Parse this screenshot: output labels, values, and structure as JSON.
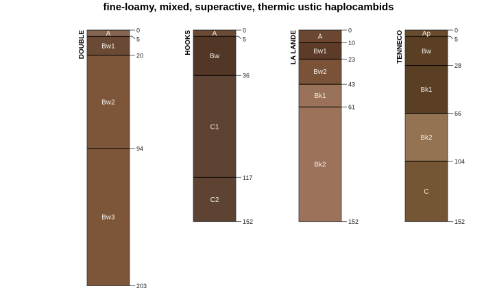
{
  "title": "fine-loamy, mixed, superactive, thermic ustic haplocambids",
  "chart_data": {
    "type": "soil-profile",
    "depth_units": "cm",
    "profiles": [
      {
        "name": "DOUBLE",
        "horizons": [
          {
            "name": "A",
            "top": 0,
            "bottom": 5,
            "color": "#856650"
          },
          {
            "name": "Bw1",
            "top": 5,
            "bottom": 20,
            "color": "#6a4a34"
          },
          {
            "name": "Bw2",
            "top": 20,
            "bottom": 94,
            "color": "#7d5538"
          },
          {
            "name": "Bw3",
            "top": 94,
            "bottom": 203,
            "color": "#7d5538"
          }
        ]
      },
      {
        "name": "HOOKS",
        "horizons": [
          {
            "name": "A",
            "top": 0,
            "bottom": 5,
            "color": "#6a4a34"
          },
          {
            "name": "Bw",
            "top": 5,
            "bottom": 36,
            "color": "#523626"
          },
          {
            "name": "C1",
            "top": 36,
            "bottom": 117,
            "color": "#5e4332"
          },
          {
            "name": "C2",
            "top": 117,
            "bottom": 152,
            "color": "#5e4332"
          }
        ]
      },
      {
        "name": "LA LANDE",
        "horizons": [
          {
            "name": "A",
            "top": 0,
            "bottom": 10,
            "color": "#6b4630"
          },
          {
            "name": "Bw1",
            "top": 10,
            "bottom": 23,
            "color": "#5c3c28"
          },
          {
            "name": "Bw2",
            "top": 23,
            "bottom": 43,
            "color": "#7a5238"
          },
          {
            "name": "Bk1",
            "top": 43,
            "bottom": 61,
            "color": "#9a725a"
          },
          {
            "name": "Bk2",
            "top": 61,
            "bottom": 152,
            "color": "#9c735a"
          }
        ]
      },
      {
        "name": "TENNECO",
        "horizons": [
          {
            "name": "Ap",
            "top": 0,
            "bottom": 5,
            "color": "#694b2e"
          },
          {
            "name": "Bw",
            "top": 5,
            "bottom": 28,
            "color": "#5a3f24"
          },
          {
            "name": "Bk1",
            "top": 28,
            "bottom": 66,
            "color": "#5a3f24"
          },
          {
            "name": "Bk2",
            "top": 66,
            "bottom": 104,
            "color": "#937352"
          },
          {
            "name": "C",
            "top": 104,
            "bottom": 152,
            "color": "#745634"
          }
        ]
      }
    ]
  }
}
